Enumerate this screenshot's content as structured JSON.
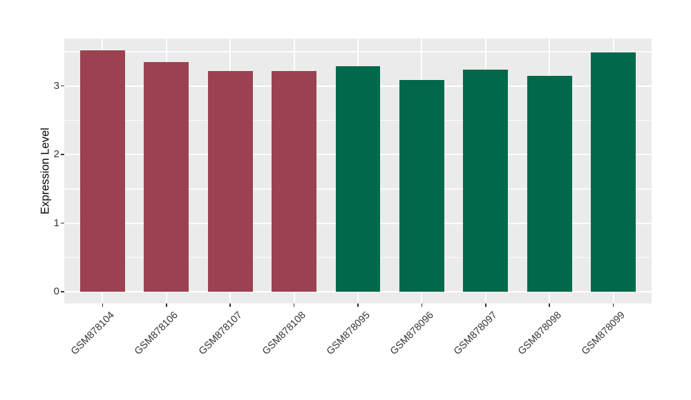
{
  "chart_data": {
    "type": "bar",
    "title": "",
    "xlabel": "",
    "ylabel": "Expression Level",
    "categories": [
      "GSM878104",
      "GSM878106",
      "GSM878107",
      "GSM878108",
      "GSM878095",
      "GSM878096",
      "GSM878097",
      "GSM878098",
      "GSM878099"
    ],
    "values": [
      3.52,
      3.35,
      3.22,
      3.22,
      3.29,
      3.09,
      3.24,
      3.15,
      3.49
    ],
    "bar_colors": [
      "#9B4150",
      "#9B4150",
      "#9B4150",
      "#9B4150",
      "#00684B",
      "#00684B",
      "#00684B",
      "#00684B",
      "#00684B"
    ],
    "group_color_red": "#9B4150",
    "group_color_green": "#00684B",
    "yticks": [
      0,
      1,
      2,
      3
    ],
    "minor_gridlines": [
      0.5,
      1.5,
      2.5,
      3.5
    ],
    "ylim": [
      -0.17,
      3.69
    ],
    "grid": "on",
    "legend": "none",
    "panel_background": "#EBEBEB",
    "gridline_color": "#FFFFFF",
    "axis_text_color": "#333333",
    "bar_width_ratio": 0.7,
    "x_label_rotation": 45
  }
}
